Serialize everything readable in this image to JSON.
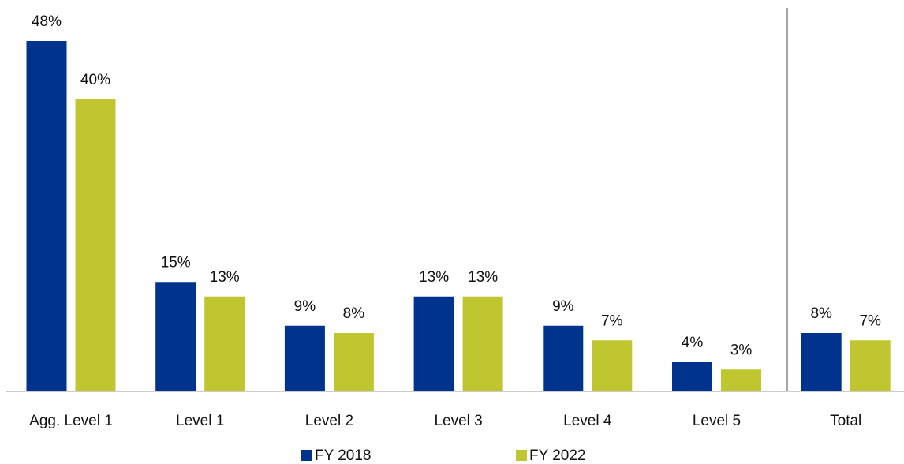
{
  "chart_data": {
    "type": "bar",
    "categories": [
      "Agg. Level 1",
      "Level 1",
      "Level 2",
      "Level 3",
      "Level 4",
      "Level 5",
      "Total"
    ],
    "series": [
      {
        "name": "FY 2018",
        "color": "#00338d",
        "values": [
          48,
          15,
          9,
          13,
          9,
          4,
          8
        ],
        "value_labels": [
          "48%",
          "15%",
          "9%",
          "13%",
          "9%",
          "4%",
          "8%"
        ]
      },
      {
        "name": "FY 2022",
        "color": "#bfc630",
        "values": [
          40,
          13,
          8,
          13,
          7,
          3,
          7
        ],
        "value_labels": [
          "40%",
          "13%",
          "8%",
          "13%",
          "7%",
          "3%",
          "7%"
        ]
      }
    ],
    "legend": "bottom"
  }
}
